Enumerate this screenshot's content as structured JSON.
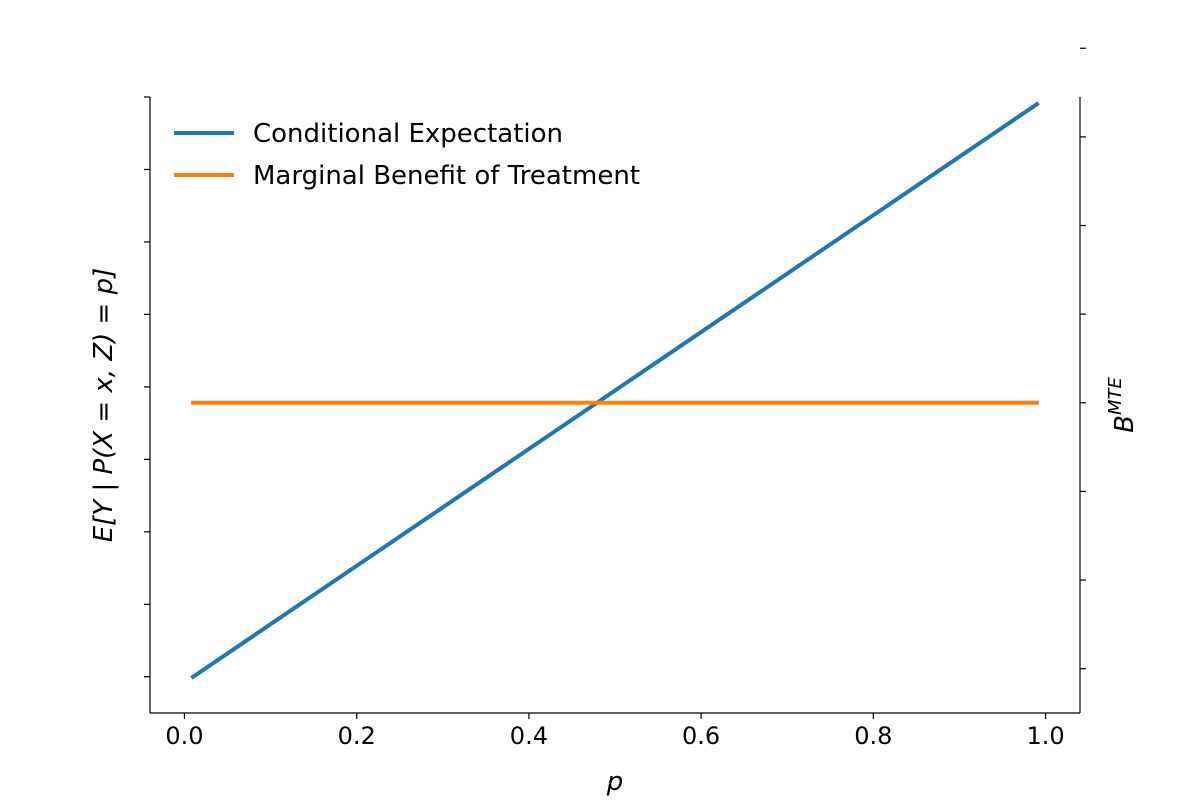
{
  "chart_data": {
    "type": "line",
    "xlabel": "p",
    "ylabel_left": "E[Y | P(X = x, Z) = p]",
    "ylabel_right_base": "B",
    "ylabel_right_sup": "MTE",
    "xlim": [
      -0.04,
      1.04
    ],
    "ylim_left": [
      -0.1,
      3.3
    ],
    "ylim_right": [
      -0.5,
      6.45
    ],
    "x_ticks": [
      0.0,
      0.2,
      0.4,
      0.6,
      0.8,
      1.0
    ],
    "x_tick_labels": [
      "0.0",
      "0.2",
      "0.4",
      "0.6",
      "0.8",
      "1.0"
    ],
    "y_ticks_left": [
      0.1,
      0.5,
      0.9,
      1.3,
      1.7,
      2.1,
      2.5,
      2.9,
      3.3
    ],
    "y_ticks_right": [
      0,
      1,
      2,
      3,
      4,
      5,
      6,
      7
    ],
    "grid": false,
    "legend_position": "upper-left",
    "series": [
      {
        "name": "Conditional Expectation",
        "color": "#1f77b4",
        "axis": "left",
        "x": [
          0.01,
          0.99
        ],
        "y": [
          0.1,
          3.26
        ]
      },
      {
        "name": "Marginal Benefit of Treatment",
        "color": "#ff7f0e",
        "axis": "right",
        "x": [
          0.01,
          0.99
        ],
        "y": [
          3.0,
          3.0
        ]
      }
    ]
  }
}
